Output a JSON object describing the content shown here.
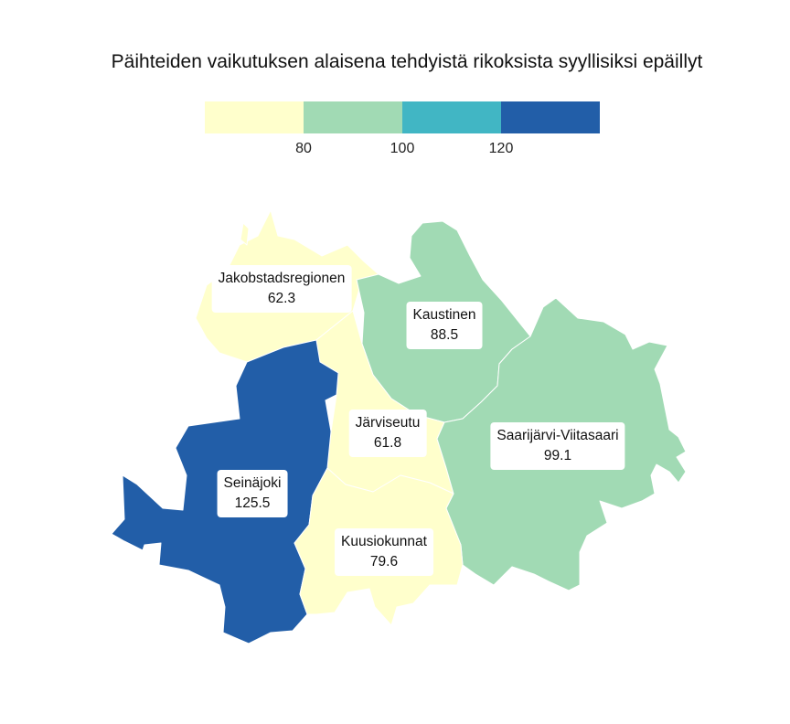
{
  "title": "Päihteiden vaikutuksen alaisena tehdyistä rikoksista syyllisiksi epäillyt",
  "legend": {
    "colors": [
      "#ffffcc",
      "#a1dab4",
      "#41b6c4",
      "#225ea8"
    ],
    "ticks": [
      "80",
      "100",
      "120"
    ]
  },
  "regions": [
    {
      "name": "Jakobstadsregionen",
      "value": "62.3",
      "color": "#ffffcc"
    },
    {
      "name": "Kaustinen",
      "value": "88.5",
      "color": "#a1dab4"
    },
    {
      "name": "Järviseutu",
      "value": "61.8",
      "color": "#ffffcc"
    },
    {
      "name": "Saarijärvi-Viitasaari",
      "value": "99.1",
      "color": "#a1dab4"
    },
    {
      "name": "Seinäjoki",
      "value": "125.5",
      "color": "#225ea8"
    },
    {
      "name": "Kuusiokunnat",
      "value": "79.6",
      "color": "#ffffcc"
    }
  ]
}
